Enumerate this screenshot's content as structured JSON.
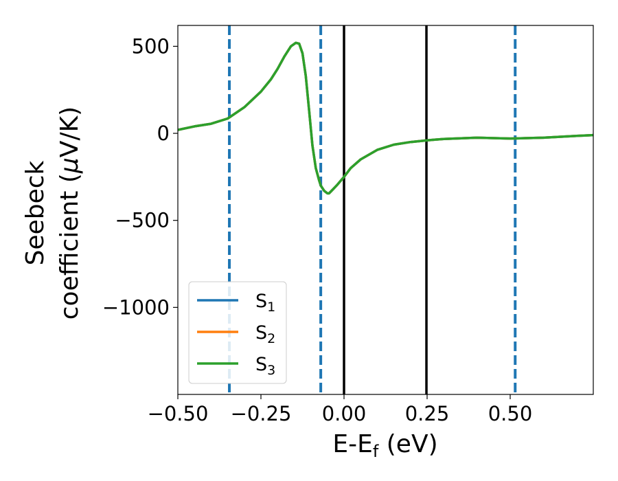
{
  "chart_data": {
    "type": "line",
    "xlabel": {
      "main": "E-E",
      "sub": "f",
      "tail": " (eV)"
    },
    "ylabel": {
      "line1": "Seebeck",
      "line2_pre": "coefficient  (",
      "line2_mu": "μ",
      "line2_post": "V/K)"
    },
    "xlim": [
      -0.5,
      0.75
    ],
    "ylim": [
      -1500,
      620
    ],
    "xticks": [
      -0.5,
      -0.25,
      0.0,
      0.25,
      0.5
    ],
    "xtick_labels": [
      "−0.50",
      "−0.25",
      "0.00",
      "0.25",
      "0.50"
    ],
    "yticks": [
      500,
      0,
      -500,
      -1000
    ],
    "ytick_labels": [
      "500",
      "0",
      "−500",
      "−1000"
    ],
    "grid": false,
    "legend_position": "lower-left",
    "series": [
      {
        "name": "S",
        "sub": "1",
        "color": "#1f77b4",
        "x": [
          -0.5,
          -0.45,
          -0.4,
          -0.35,
          -0.3,
          -0.25,
          -0.22,
          -0.2,
          -0.18,
          -0.16,
          -0.145,
          -0.135,
          -0.125,
          -0.115,
          -0.105,
          -0.095,
          -0.085,
          -0.075,
          -0.07,
          -0.06,
          -0.05,
          -0.045,
          -0.035,
          -0.02,
          0.0,
          0.02,
          0.05,
          0.1,
          0.15,
          0.2,
          0.25,
          0.3,
          0.4,
          0.5,
          0.6,
          0.7,
          0.75
        ],
        "y": [
          20,
          40,
          55,
          85,
          150,
          240,
          310,
          370,
          440,
          500,
          520,
          515,
          460,
          330,
          130,
          -70,
          -200,
          -270,
          -300,
          -330,
          -345,
          -345,
          -325,
          -295,
          -250,
          -200,
          -150,
          -95,
          -65,
          -50,
          -40,
          -32,
          -25,
          -30,
          -25,
          -15,
          -10
        ]
      },
      {
        "name": "S",
        "sub": "2",
        "color": "#ff7f0e",
        "x": [
          -0.5,
          -0.45,
          -0.4,
          -0.35,
          -0.3,
          -0.25,
          -0.22,
          -0.2,
          -0.18,
          -0.16,
          -0.145,
          -0.135,
          -0.125,
          -0.115,
          -0.105,
          -0.095,
          -0.085,
          -0.075,
          -0.07,
          -0.06,
          -0.05,
          -0.045,
          -0.035,
          -0.02,
          0.0,
          0.02,
          0.05,
          0.1,
          0.15,
          0.2,
          0.25,
          0.3,
          0.4,
          0.5,
          0.6,
          0.7,
          0.75
        ],
        "y": [
          20,
          40,
          55,
          85,
          150,
          240,
          310,
          370,
          440,
          500,
          520,
          515,
          460,
          330,
          130,
          -70,
          -200,
          -270,
          -300,
          -330,
          -345,
          -345,
          -325,
          -295,
          -250,
          -200,
          -150,
          -95,
          -65,
          -50,
          -40,
          -32,
          -25,
          -30,
          -25,
          -15,
          -10
        ]
      },
      {
        "name": "S",
        "sub": "3",
        "color": "#2ca02c",
        "x": [
          -0.5,
          -0.45,
          -0.4,
          -0.35,
          -0.3,
          -0.25,
          -0.22,
          -0.2,
          -0.18,
          -0.16,
          -0.145,
          -0.135,
          -0.125,
          -0.115,
          -0.105,
          -0.095,
          -0.085,
          -0.075,
          -0.07,
          -0.06,
          -0.05,
          -0.045,
          -0.035,
          -0.02,
          0.0,
          0.02,
          0.05,
          0.1,
          0.15,
          0.2,
          0.25,
          0.3,
          0.4,
          0.5,
          0.6,
          0.7,
          0.75
        ],
        "y": [
          20,
          40,
          55,
          85,
          150,
          240,
          310,
          370,
          440,
          500,
          520,
          515,
          460,
          330,
          130,
          -70,
          -200,
          -270,
          -300,
          -330,
          -345,
          -345,
          -325,
          -295,
          -250,
          -200,
          -150,
          -95,
          -65,
          -50,
          -40,
          -32,
          -25,
          -30,
          -25,
          -15,
          -10
        ]
      }
    ],
    "vlines": [
      {
        "x": -0.345,
        "style": "dashed",
        "color": "#1f77b4"
      },
      {
        "x": -0.07,
        "style": "dashed",
        "color": "#1f77b4"
      },
      {
        "x": 0.0,
        "style": "solid",
        "color": "#000000"
      },
      {
        "x": 0.248,
        "style": "solid",
        "color": "#000000"
      },
      {
        "x": 0.515,
        "style": "dashed",
        "color": "#1f77b4"
      }
    ]
  }
}
